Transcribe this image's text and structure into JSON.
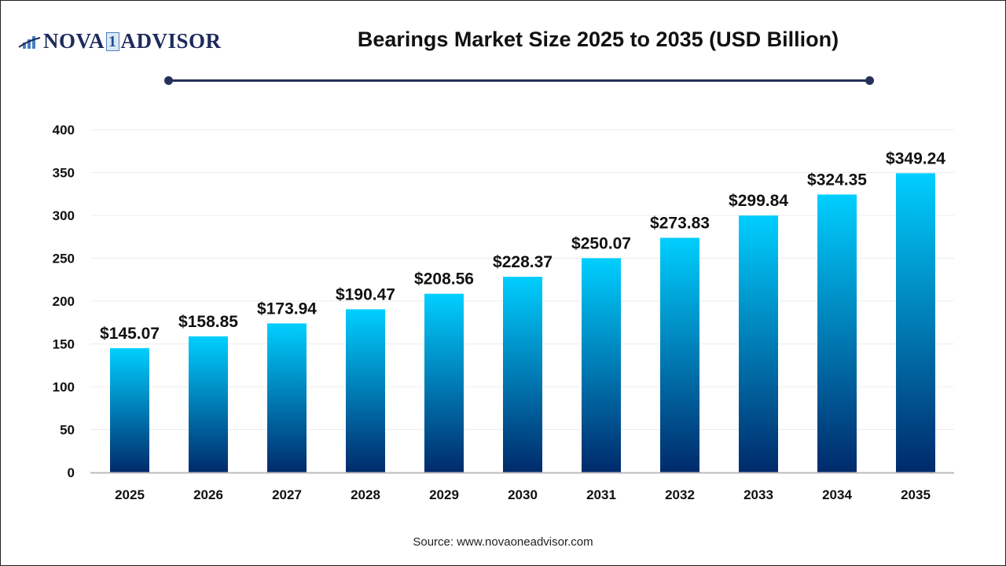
{
  "header": {
    "logo_text": "NOVA 1 ADVISOR",
    "title": "Bearings Market Size 2025 to 2035 (USD Billion)"
  },
  "footer": {
    "source": "Source: www.novaoneadvisor.com"
  },
  "colors": {
    "bar_top": "#00cfff",
    "bar_bottom": "#002a6b",
    "title_rule": "#26305a"
  },
  "chart_data": {
    "type": "bar",
    "title": "Bearings Market Size 2025 to 2035 (USD Billion)",
    "categories": [
      "2025",
      "2026",
      "2027",
      "2028",
      "2029",
      "2030",
      "2031",
      "2032",
      "2033",
      "2034",
      "2035"
    ],
    "values": [
      145.07,
      158.85,
      173.94,
      190.47,
      208.56,
      228.37,
      250.07,
      273.83,
      299.84,
      324.35,
      349.24
    ],
    "data_labels": [
      "$145.07",
      "$158.85",
      "$173.94",
      "$190.47",
      "$208.56",
      "$228.37",
      "$250.07",
      "$273.83",
      "$299.84",
      "$324.35",
      "$349.24"
    ],
    "yticks": [
      "0",
      "50",
      "100",
      "150",
      "200",
      "250",
      "300",
      "350",
      "400"
    ],
    "ylim": [
      0,
      400
    ],
    "grid": true,
    "xlabel": "",
    "ylabel": ""
  }
}
